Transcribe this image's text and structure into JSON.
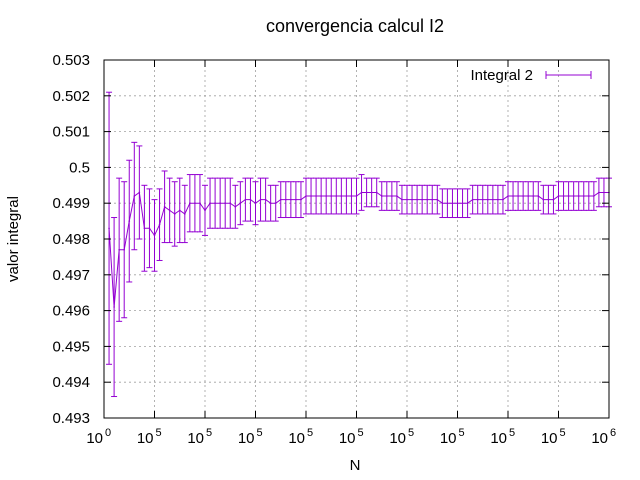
{
  "chart_data": {
    "type": "line",
    "title": "convergencia calcul I2",
    "xlabel": "N",
    "ylabel": "valor integral",
    "xlim": [
      0,
      1000000
    ],
    "ylim": [
      0.493,
      0.503
    ],
    "grid": true,
    "legend_position": "top-right",
    "x_ticks": [
      {
        "base": "10",
        "exp": "0"
      },
      {
        "base": "10",
        "exp": "5"
      },
      {
        "base": "10",
        "exp": "5"
      },
      {
        "base": "10",
        "exp": "5"
      },
      {
        "base": "10",
        "exp": "5"
      },
      {
        "base": "10",
        "exp": "5"
      },
      {
        "base": "10",
        "exp": "5"
      },
      {
        "base": "10",
        "exp": "5"
      },
      {
        "base": "10",
        "exp": "5"
      },
      {
        "base": "10",
        "exp": "5"
      },
      {
        "base": "10",
        "exp": "6"
      }
    ],
    "y_ticks": [
      "0.503",
      "0.502",
      "0.501",
      "0.5",
      "0.499",
      "0.498",
      "0.497",
      "0.496",
      "0.495",
      "0.494",
      "0.493"
    ],
    "series": [
      {
        "name": "Integral 2",
        "color": "#9400d3",
        "style": "errorbars",
        "x": [
          10000,
          20000,
          30000,
          40000,
          50000,
          60000,
          70000,
          80000,
          90000,
          100000,
          110000,
          120000,
          130000,
          140000,
          150000,
          160000,
          170000,
          180000,
          190000,
          200000,
          210000,
          220000,
          230000,
          240000,
          250000,
          260000,
          270000,
          280000,
          290000,
          300000,
          310000,
          320000,
          330000,
          340000,
          350000,
          360000,
          370000,
          380000,
          390000,
          400000,
          410000,
          420000,
          430000,
          440000,
          450000,
          460000,
          470000,
          480000,
          490000,
          500000,
          510000,
          520000,
          530000,
          540000,
          550000,
          560000,
          570000,
          580000,
          590000,
          600000,
          610000,
          620000,
          630000,
          640000,
          650000,
          660000,
          670000,
          680000,
          690000,
          700000,
          710000,
          720000,
          730000,
          740000,
          750000,
          760000,
          770000,
          780000,
          790000,
          800000,
          810000,
          820000,
          830000,
          840000,
          850000,
          860000,
          870000,
          880000,
          890000,
          900000,
          910000,
          920000,
          930000,
          940000,
          950000,
          960000,
          970000,
          980000,
          990000,
          1000000
        ],
        "y": [
          0.4983,
          0.4961,
          0.4977,
          0.4977,
          0.4985,
          0.4992,
          0.4993,
          0.4983,
          0.4983,
          0.4981,
          0.4984,
          0.4989,
          0.4988,
          0.4987,
          0.4988,
          0.4987,
          0.499,
          0.499,
          0.499,
          0.4988,
          0.499,
          0.499,
          0.499,
          0.499,
          0.499,
          0.4989,
          0.499,
          0.4991,
          0.4991,
          0.499,
          0.4991,
          0.4991,
          0.499,
          0.499,
          0.4991,
          0.4991,
          0.4991,
          0.4991,
          0.4991,
          0.4992,
          0.4992,
          0.4992,
          0.4992,
          0.4992,
          0.4992,
          0.4992,
          0.4992,
          0.4992,
          0.4992,
          0.4992,
          0.4993,
          0.4993,
          0.4993,
          0.4993,
          0.4992,
          0.4992,
          0.4992,
          0.4992,
          0.4991,
          0.4991,
          0.4991,
          0.4991,
          0.4991,
          0.4991,
          0.4991,
          0.4991,
          0.499,
          0.499,
          0.499,
          0.499,
          0.499,
          0.499,
          0.4991,
          0.4991,
          0.4991,
          0.4991,
          0.4991,
          0.4991,
          0.4991,
          0.4992,
          0.4992,
          0.4992,
          0.4992,
          0.4992,
          0.4992,
          0.4992,
          0.4991,
          0.4991,
          0.4991,
          0.4992,
          0.4992,
          0.4992,
          0.4992,
          0.4992,
          0.4992,
          0.4992,
          0.4992,
          0.4993,
          0.4993,
          0.4993
        ],
        "yerr": [
          0.0038,
          0.0025,
          0.002,
          0.0019,
          0.0017,
          0.0015,
          0.0013,
          0.0012,
          0.0011,
          0.001,
          0.001,
          0.001,
          0.0009,
          0.0009,
          0.0009,
          0.0008,
          0.0008,
          0.0008,
          0.0008,
          0.0007,
          0.0007,
          0.0007,
          0.0007,
          0.0007,
          0.0007,
          0.0006,
          0.0006,
          0.0006,
          0.0006,
          0.0006,
          0.0006,
          0.0006,
          0.0005,
          0.0005,
          0.0005,
          0.0005,
          0.0005,
          0.0005,
          0.0005,
          0.0005,
          0.0005,
          0.0005,
          0.0005,
          0.0005,
          0.0005,
          0.0005,
          0.0005,
          0.0005,
          0.0005,
          0.0005,
          0.0005,
          0.0004,
          0.0004,
          0.0004,
          0.0004,
          0.0004,
          0.0004,
          0.0004,
          0.0004,
          0.0004,
          0.0004,
          0.0004,
          0.0004,
          0.0004,
          0.0004,
          0.0004,
          0.0004,
          0.0004,
          0.0004,
          0.0004,
          0.0004,
          0.0004,
          0.0004,
          0.0004,
          0.0004,
          0.0004,
          0.0004,
          0.0004,
          0.0004,
          0.0004,
          0.0004,
          0.0004,
          0.0004,
          0.0004,
          0.0004,
          0.0004,
          0.0004,
          0.0004,
          0.0004,
          0.0004,
          0.0004,
          0.0004,
          0.0004,
          0.0004,
          0.0004,
          0.0004,
          0.0004,
          0.0004,
          0.0004,
          0.0004
        ]
      }
    ]
  }
}
